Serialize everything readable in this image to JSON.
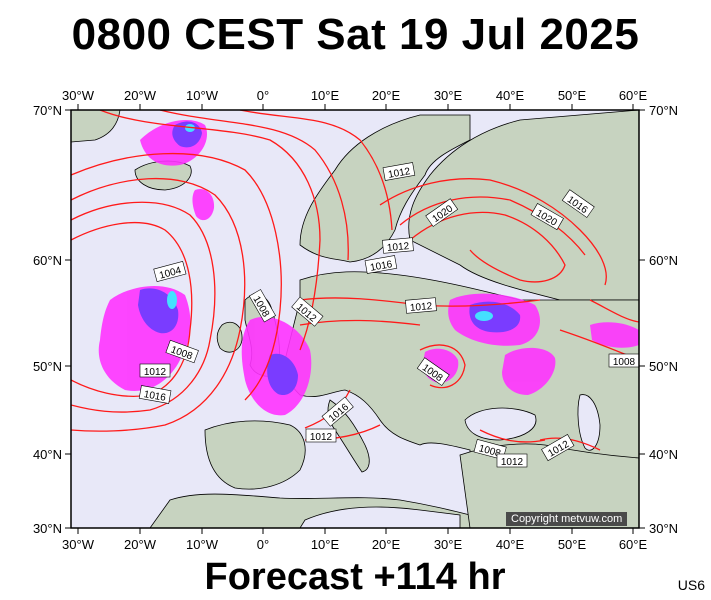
{
  "header": {
    "title": "0800 CEST Sat 19 Jul 2025"
  },
  "footer": {
    "forecast": "Forecast +114 hr",
    "code": "US6"
  },
  "copyright": "Copyright metvuw.com",
  "map": {
    "lon_ticks": [
      "30°W",
      "20°W",
      "10°W",
      "0°",
      "10°E",
      "20°E",
      "30°E",
      "40°E",
      "50°E",
      "60°E"
    ],
    "lat_ticks": [
      "70°N",
      "60°N",
      "50°N",
      "40°N",
      "30°N"
    ],
    "colors": {
      "isobar": "#ff1a1a",
      "sea": "#e8e8f8",
      "land": "#c7d3c0",
      "precip": "#ff33ff",
      "precip_core": "#7a3cff",
      "precip_peak": "#44e0ff"
    },
    "isobar_labels": [
      "1004",
      "1008",
      "1008",
      "1012",
      "1016",
      "1008",
      "1012",
      "1012",
      "1016",
      "1012",
      "1016",
      "1020",
      "1020",
      "1016",
      "1012",
      "1008",
      "1012",
      "1012",
      "1008",
      "1012"
    ]
  }
}
